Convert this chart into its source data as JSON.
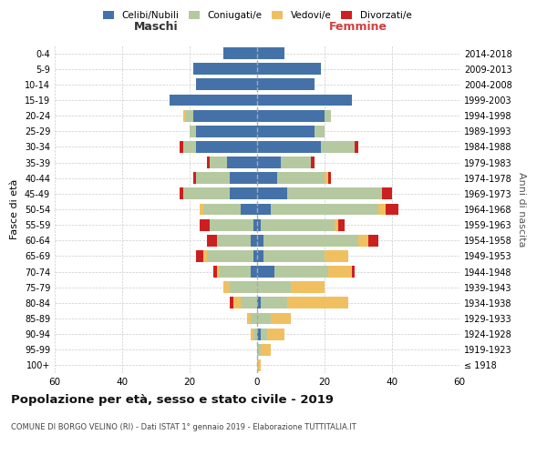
{
  "age_groups": [
    "100+",
    "95-99",
    "90-94",
    "85-89",
    "80-84",
    "75-79",
    "70-74",
    "65-69",
    "60-64",
    "55-59",
    "50-54",
    "45-49",
    "40-44",
    "35-39",
    "30-34",
    "25-29",
    "20-24",
    "15-19",
    "10-14",
    "5-9",
    "0-4"
  ],
  "birth_years": [
    "≤ 1918",
    "1919-1923",
    "1924-1928",
    "1929-1933",
    "1934-1938",
    "1939-1943",
    "1944-1948",
    "1949-1953",
    "1954-1958",
    "1959-1963",
    "1964-1968",
    "1969-1973",
    "1974-1978",
    "1979-1983",
    "1984-1988",
    "1989-1993",
    "1994-1998",
    "1999-2003",
    "2004-2008",
    "2009-2013",
    "2014-2018"
  ],
  "colors": {
    "celibi": "#4472a8",
    "coniugati": "#b5c9a0",
    "vedovi": "#f0c060",
    "divorziati": "#cc2020"
  },
  "maschi": {
    "celibi": [
      0,
      0,
      0,
      0,
      0,
      0,
      2,
      1,
      2,
      1,
      5,
      8,
      8,
      9,
      18,
      18,
      19,
      26,
      18,
      19,
      10
    ],
    "coniugati": [
      0,
      0,
      1,
      2,
      5,
      8,
      9,
      14,
      10,
      13,
      11,
      14,
      10,
      5,
      4,
      2,
      2,
      0,
      0,
      0,
      0
    ],
    "vedovi": [
      0,
      0,
      1,
      1,
      2,
      2,
      1,
      1,
      0,
      0,
      1,
      0,
      0,
      0,
      0,
      0,
      1,
      0,
      0,
      0,
      0
    ],
    "divorziati": [
      0,
      0,
      0,
      0,
      1,
      0,
      1,
      2,
      3,
      3,
      0,
      1,
      1,
      1,
      1,
      0,
      0,
      0,
      0,
      0,
      0
    ]
  },
  "femmine": {
    "celibi": [
      0,
      0,
      1,
      0,
      1,
      0,
      5,
      2,
      2,
      1,
      4,
      9,
      6,
      7,
      19,
      17,
      20,
      28,
      17,
      19,
      8
    ],
    "coniugati": [
      0,
      1,
      2,
      4,
      8,
      10,
      16,
      18,
      28,
      22,
      32,
      28,
      14,
      9,
      10,
      3,
      2,
      0,
      0,
      0,
      0
    ],
    "vedovi": [
      1,
      3,
      5,
      6,
      18,
      10,
      7,
      7,
      3,
      1,
      2,
      0,
      1,
      0,
      0,
      0,
      0,
      0,
      0,
      0,
      0
    ],
    "divorziati": [
      0,
      0,
      0,
      0,
      0,
      0,
      1,
      0,
      3,
      2,
      4,
      3,
      1,
      1,
      1,
      0,
      0,
      0,
      0,
      0,
      0
    ]
  },
  "xlim": 60,
  "title": "Popolazione per età, sesso e stato civile - 2019",
  "subtitle": "COMUNE DI BORGO VELINO (RI) - Dati ISTAT 1° gennaio 2019 - Elaborazione TUTTITALIA.IT",
  "ylabel_left": "Fasce di età",
  "ylabel_right": "Anni di nascita",
  "xlabel_left": "Maschi",
  "xlabel_right": "Femmine"
}
